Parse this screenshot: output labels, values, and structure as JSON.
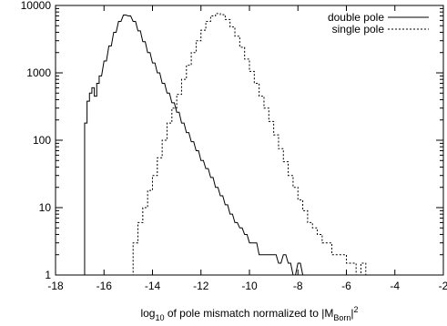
{
  "chart_data": {
    "type": "line",
    "title": "",
    "xlabel": {
      "prefix": "log",
      "prefix_sub": "10",
      "main": " of pole mismatch normalized to |M",
      "main_sub": "Born",
      "main_suffix": "|",
      "main_sup": "2"
    },
    "ylabel": "",
    "xlim": [
      -18,
      -2
    ],
    "ylim": [
      1,
      10000
    ],
    "yscale": "log",
    "grid": false,
    "legend_position": "top-right",
    "x_ticks": [
      "-18",
      "-16",
      "-14",
      "-12",
      "-10",
      "-8",
      "-6",
      "-4",
      "-2"
    ],
    "y_ticks": [
      "1",
      "10",
      "100",
      "1000",
      "10000"
    ],
    "series": [
      {
        "name": "double pole",
        "style": "solid",
        "color": "#000000",
        "x": [
          -16.9,
          -16.8,
          -16.7,
          -16.6,
          -16.5,
          -16.4,
          -16.3,
          -16.2,
          -16.0,
          -15.8,
          -15.6,
          -15.4,
          -15.2,
          -15.0,
          -14.8,
          -14.6,
          -14.4,
          -14.2,
          -14.0,
          -13.8,
          -13.6,
          -13.4,
          -13.2,
          -13.0,
          -12.8,
          -12.6,
          -12.4,
          -12.2,
          -12.0,
          -11.8,
          -11.6,
          -11.4,
          -11.2,
          -11.0,
          -10.8,
          -10.6,
          -10.4,
          -10.2,
          -10.0,
          -9.8,
          -9.6,
          -9.4,
          -9.2,
          -9.0,
          -8.8,
          -8.6,
          -8.4,
          -8.2,
          -8.0,
          -7.8,
          -7.6
        ],
        "values": [
          1,
          180,
          380,
          500,
          600,
          450,
          700,
          900,
          1500,
          2500,
          4000,
          5800,
          7200,
          7000,
          5800,
          4200,
          2900,
          2000,
          1400,
          1000,
          700,
          500,
          360,
          260,
          180,
          130,
          95,
          70,
          50,
          38,
          28,
          20,
          15,
          11,
          8,
          6,
          5,
          4,
          3,
          3,
          2,
          2,
          2,
          2,
          1.5,
          2,
          1.5,
          1,
          1.5,
          1,
          1
        ]
      },
      {
        "name": "single pole",
        "style": "dashed",
        "color": "#000000",
        "x": [
          -15.0,
          -14.8,
          -14.6,
          -14.4,
          -14.2,
          -14.0,
          -13.8,
          -13.6,
          -13.4,
          -13.2,
          -13.0,
          -12.8,
          -12.6,
          -12.4,
          -12.2,
          -12.0,
          -11.8,
          -11.6,
          -11.4,
          -11.2,
          -11.0,
          -10.8,
          -10.6,
          -10.4,
          -10.2,
          -10.0,
          -9.8,
          -9.6,
          -9.4,
          -9.2,
          -9.0,
          -8.8,
          -8.6,
          -8.4,
          -8.2,
          -8.0,
          -7.8,
          -7.6,
          -7.4,
          -7.2,
          -7.0,
          -6.8,
          -6.6,
          -6.4,
          -6.2,
          -6.0,
          -5.8,
          -5.6,
          -5.4,
          -5.2,
          -5.0
        ],
        "values": [
          1,
          3,
          6,
          10,
          18,
          30,
          55,
          100,
          180,
          300,
          480,
          800,
          1300,
          2000,
          3000,
          4300,
          5800,
          7000,
          7600,
          7300,
          6200,
          4800,
          3500,
          2400,
          1600,
          1050,
          700,
          450,
          300,
          190,
          120,
          75,
          48,
          30,
          20,
          13,
          9,
          6,
          5,
          4,
          3,
          3,
          2,
          2,
          2,
          1.5,
          1.5,
          1,
          1.5,
          1,
          1
        ]
      }
    ]
  }
}
